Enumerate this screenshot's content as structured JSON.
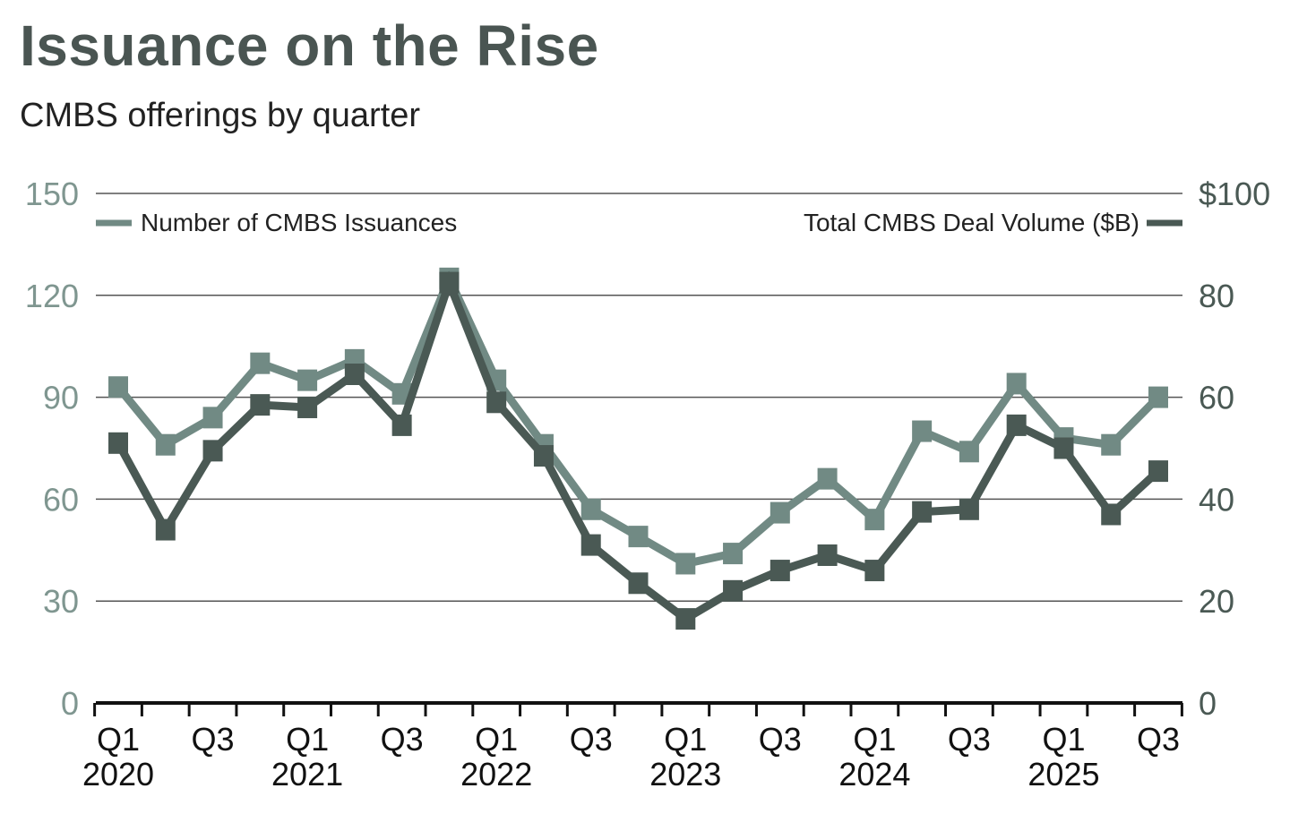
{
  "chart_data": {
    "type": "line",
    "title": "Issuance on the Rise",
    "subtitle": "CMBS offerings by quarter",
    "x": [
      "Q1 2020",
      "Q2 2020",
      "Q3 2020",
      "Q4 2020",
      "Q1 2021",
      "Q2 2021",
      "Q3 2021",
      "Q4 2021",
      "Q1 2022",
      "Q2 2022",
      "Q3 2022",
      "Q4 2022",
      "Q1 2023",
      "Q2 2023",
      "Q3 2023",
      "Q4 2023",
      "Q1 2024",
      "Q2 2024",
      "Q3 2024",
      "Q4 2024",
      "Q1 2025",
      "Q2 2025",
      "Q3 2025"
    ],
    "x_tick_labels": [
      {
        "index": 0,
        "quarter": "Q1",
        "year": "2020"
      },
      {
        "index": 2,
        "quarter": "Q3",
        "year": ""
      },
      {
        "index": 4,
        "quarter": "Q1",
        "year": "2021"
      },
      {
        "index": 6,
        "quarter": "Q3",
        "year": ""
      },
      {
        "index": 8,
        "quarter": "Q1",
        "year": "2022"
      },
      {
        "index": 10,
        "quarter": "Q3",
        "year": ""
      },
      {
        "index": 12,
        "quarter": "Q1",
        "year": "2023"
      },
      {
        "index": 14,
        "quarter": "Q3",
        "year": ""
      },
      {
        "index": 16,
        "quarter": "Q1",
        "year": "2024"
      },
      {
        "index": 18,
        "quarter": "Q3",
        "year": ""
      },
      {
        "index": 20,
        "quarter": "Q1",
        "year": "2025"
      },
      {
        "index": 22,
        "quarter": "Q3",
        "year": ""
      }
    ],
    "left_axis": {
      "range": [
        0,
        150
      ],
      "ticks": [
        "0",
        "30",
        "60",
        "90",
        "120",
        "150"
      ],
      "color": "#7f9690"
    },
    "right_axis": {
      "range": [
        0,
        100
      ],
      "ticks": [
        "0",
        "20",
        "40",
        "60",
        "80",
        "$100"
      ],
      "color": "#4a5954"
    },
    "grid": true,
    "series": [
      {
        "name": "Number of CMBS Issuances",
        "axis": "left",
        "color": "#718a84",
        "legend": "top-left",
        "values": [
          93,
          76,
          84,
          100,
          95,
          101,
          91,
          125,
          95,
          76,
          57,
          49,
          41,
          44,
          56,
          66,
          54,
          80,
          74,
          94,
          78,
          76,
          90
        ]
      },
      {
        "name": "Total CMBS Deal Volume ($B)",
        "axis": "right",
        "color": "#4a5954",
        "legend": "top-right",
        "values": [
          51,
          34,
          49.5,
          58.5,
          58,
          64.5,
          54.5,
          82.5,
          59,
          48.5,
          31,
          23.5,
          16.5,
          22,
          26,
          29,
          26,
          37.5,
          38,
          54.5,
          50,
          37,
          45.5
        ]
      }
    ]
  }
}
